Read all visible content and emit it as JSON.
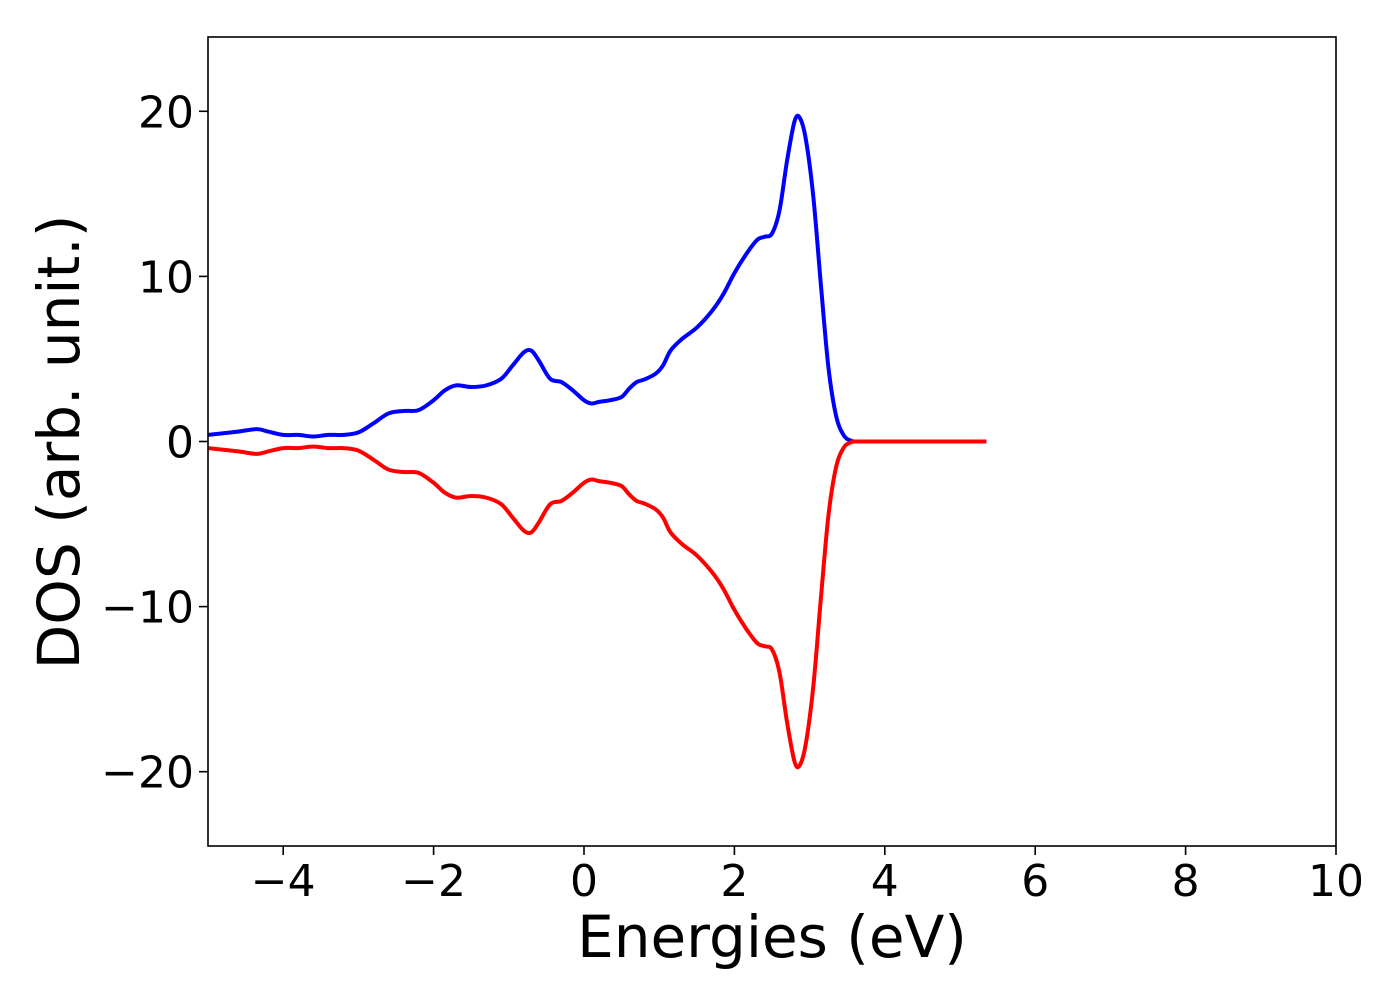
{
  "chart_data": {
    "type": "line",
    "title": "",
    "xlabel": "Energies (eV)",
    "ylabel": "DOS (arb. unit.)",
    "xlim": [
      -5,
      10
    ],
    "ylim": [
      -24.5,
      24.5
    ],
    "xticks": [
      -4,
      -2,
      0,
      2,
      4,
      6,
      8,
      10
    ],
    "xtick_labels": [
      "−4",
      "−2",
      "0",
      "2",
      "4",
      "6",
      "8",
      "10"
    ],
    "yticks": [
      -20,
      -10,
      0,
      10,
      20
    ],
    "ytick_labels": [
      "−20",
      "−10",
      "0",
      "10",
      "20"
    ],
    "grid": false,
    "legend": "none",
    "series": [
      {
        "color": "#0000ff",
        "x": [
          -5.0,
          -4.6,
          -4.35,
          -4.2,
          -4.0,
          -3.8,
          -3.6,
          -3.4,
          -3.2,
          -3.0,
          -2.8,
          -2.6,
          -2.4,
          -2.2,
          -2.0,
          -1.85,
          -1.7,
          -1.5,
          -1.3,
          -1.1,
          -0.95,
          -0.8,
          -0.7,
          -0.6,
          -0.45,
          -0.3,
          -0.15,
          0.0,
          0.1,
          0.2,
          0.35,
          0.5,
          0.6,
          0.7,
          0.8,
          0.95,
          1.05,
          1.15,
          1.3,
          1.5,
          1.7,
          1.85,
          2.0,
          2.15,
          2.3,
          2.4,
          2.5,
          2.6,
          2.7,
          2.8,
          2.87,
          2.95,
          3.05,
          3.15,
          3.25,
          3.35,
          3.45,
          3.55,
          3.65,
          4.0,
          5.35
        ],
        "y": [
          0.4,
          0.6,
          0.75,
          0.6,
          0.4,
          0.4,
          0.3,
          0.4,
          0.4,
          0.55,
          1.1,
          1.7,
          1.85,
          1.9,
          2.5,
          3.1,
          3.4,
          3.3,
          3.4,
          3.8,
          4.6,
          5.4,
          5.5,
          4.9,
          3.8,
          3.6,
          3.1,
          2.5,
          2.3,
          2.4,
          2.5,
          2.7,
          3.2,
          3.6,
          3.75,
          4.1,
          4.6,
          5.5,
          6.2,
          6.9,
          7.9,
          8.9,
          10.2,
          11.3,
          12.2,
          12.4,
          12.6,
          14.0,
          17.0,
          19.4,
          19.6,
          18.3,
          14.8,
          9.5,
          4.5,
          1.6,
          0.4,
          0.05,
          0.0,
          0.0,
          0.0
        ]
      },
      {
        "color": "#ff0000",
        "x": [
          -5.0,
          -4.6,
          -4.35,
          -4.2,
          -4.0,
          -3.8,
          -3.6,
          -3.4,
          -3.2,
          -3.0,
          -2.8,
          -2.6,
          -2.4,
          -2.2,
          -2.0,
          -1.85,
          -1.7,
          -1.5,
          -1.3,
          -1.1,
          -0.95,
          -0.8,
          -0.7,
          -0.6,
          -0.45,
          -0.3,
          -0.15,
          0.0,
          0.1,
          0.2,
          0.35,
          0.5,
          0.6,
          0.7,
          0.8,
          0.95,
          1.05,
          1.15,
          1.3,
          1.5,
          1.7,
          1.85,
          2.0,
          2.15,
          2.3,
          2.4,
          2.5,
          2.6,
          2.7,
          2.8,
          2.87,
          2.95,
          3.05,
          3.15,
          3.25,
          3.35,
          3.45,
          3.55,
          3.65,
          4.0,
          5.35
        ],
        "y": [
          -0.4,
          -0.6,
          -0.75,
          -0.6,
          -0.4,
          -0.4,
          -0.3,
          -0.4,
          -0.4,
          -0.55,
          -1.1,
          -1.7,
          -1.85,
          -1.9,
          -2.5,
          -3.1,
          -3.4,
          -3.3,
          -3.4,
          -3.8,
          -4.6,
          -5.4,
          -5.5,
          -4.9,
          -3.8,
          -3.6,
          -3.1,
          -2.5,
          -2.3,
          -2.4,
          -2.5,
          -2.7,
          -3.2,
          -3.6,
          -3.75,
          -4.1,
          -4.6,
          -5.5,
          -6.2,
          -6.9,
          -7.9,
          -8.9,
          -10.2,
          -11.3,
          -12.2,
          -12.4,
          -12.6,
          -14.0,
          -17.0,
          -19.4,
          -19.6,
          -18.3,
          -14.8,
          -9.5,
          -4.5,
          -1.6,
          -0.4,
          -0.05,
          0.0,
          0.0,
          0.0
        ]
      }
    ]
  }
}
